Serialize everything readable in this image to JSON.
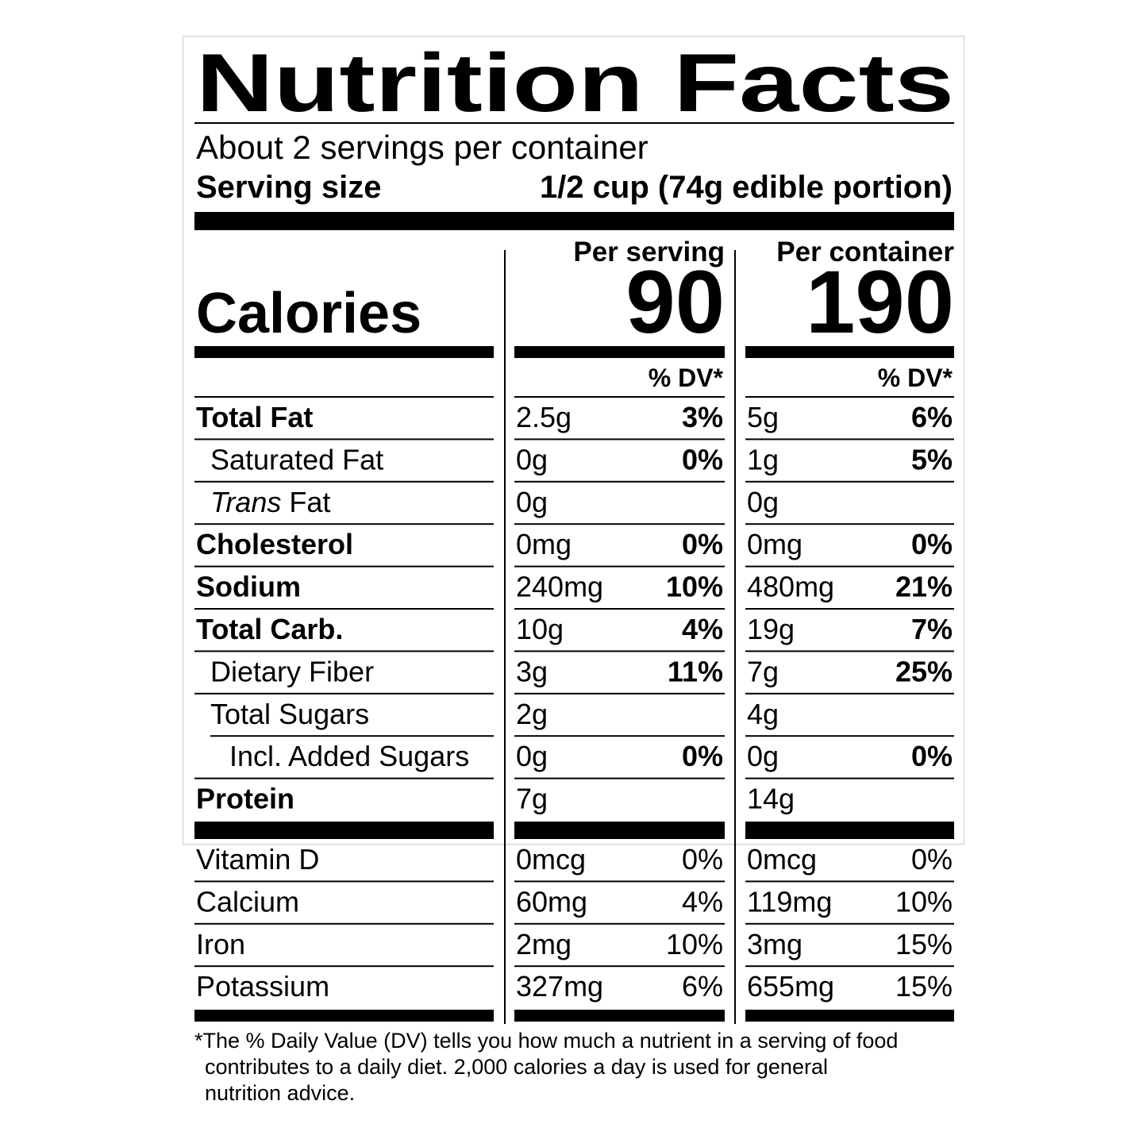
{
  "header": {
    "title": "Nutrition Facts",
    "servings": "About 2 servings per container",
    "serving_size_label": "Serving size",
    "serving_size_value": "1/2 cup (74g edible portion)"
  },
  "calories_label": "Calories",
  "columns": [
    {
      "heading": "Per serving",
      "calories": "90",
      "dv_heading": "% DV*"
    },
    {
      "heading": "Per container",
      "calories": "190",
      "dv_heading": "% DV*"
    }
  ],
  "nutrients": [
    {
      "label": "Total Fat",
      "kind": "main",
      "values": [
        {
          "amount": "2.5g",
          "dv": "3%"
        },
        {
          "amount": "5g",
          "dv": "6%"
        }
      ]
    },
    {
      "label": "Saturated Fat",
      "kind": "sub",
      "values": [
        {
          "amount": "0g",
          "dv": "0%"
        },
        {
          "amount": "1g",
          "dv": "5%"
        }
      ]
    },
    {
      "label_italic": "Trans",
      "label": "Fat",
      "kind": "sub",
      "values": [
        {
          "amount": "0g"
        },
        {
          "amount": "0g"
        }
      ]
    },
    {
      "label": "Cholesterol",
      "kind": "main",
      "values": [
        {
          "amount": "0mg",
          "dv": "0%"
        },
        {
          "amount": "0mg",
          "dv": "0%"
        }
      ]
    },
    {
      "label": "Sodium",
      "kind": "main",
      "values": [
        {
          "amount": "240mg",
          "dv": "10%"
        },
        {
          "amount": "480mg",
          "dv": "21%"
        }
      ]
    },
    {
      "label": "Total Carb.",
      "kind": "main",
      "values": [
        {
          "amount": "10g",
          "dv": "4%"
        },
        {
          "amount": "19g",
          "dv": "7%"
        }
      ]
    },
    {
      "label": "Dietary Fiber",
      "kind": "sub",
      "values": [
        {
          "amount": "3g",
          "dv": "11%"
        },
        {
          "amount": "7g",
          "dv": "25%"
        }
      ]
    },
    {
      "label": "Total Sugars",
      "kind": "sub",
      "values": [
        {
          "amount": "2g"
        },
        {
          "amount": "4g"
        }
      ]
    },
    {
      "label": "Incl. Added Sugars",
      "kind": "subsub",
      "values": [
        {
          "amount": "0g",
          "dv": "0%"
        },
        {
          "amount": "0g",
          "dv": "0%"
        }
      ]
    },
    {
      "label": "Protein",
      "kind": "main",
      "values": [
        {
          "amount": "7g"
        },
        {
          "amount": "14g"
        }
      ]
    }
  ],
  "vitamins": [
    {
      "label": "Vitamin D",
      "values": [
        {
          "amount": "0mcg",
          "dv": "0%"
        },
        {
          "amount": "0mcg",
          "dv": "0%"
        }
      ]
    },
    {
      "label": "Calcium",
      "values": [
        {
          "amount": "60mg",
          "dv": "4%"
        },
        {
          "amount": "119mg",
          "dv": "10%"
        }
      ]
    },
    {
      "label": "Iron",
      "values": [
        {
          "amount": "2mg",
          "dv": "10%"
        },
        {
          "amount": "3mg",
          "dv": "15%"
        }
      ]
    },
    {
      "label": "Potassium",
      "values": [
        {
          "amount": "327mg",
          "dv": "6%"
        },
        {
          "amount": "655mg",
          "dv": "15%"
        }
      ]
    }
  ],
  "footnote": [
    "*The % Daily Value (DV) tells you how much a nutrient in a serving of food",
    "contributes to a daily diet. 2,000 calories a day is used for general",
    "nutrition advice."
  ]
}
